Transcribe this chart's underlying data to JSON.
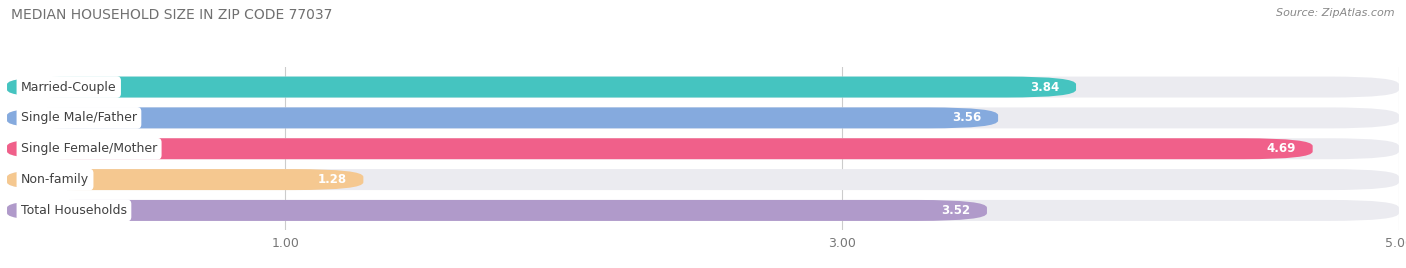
{
  "title": "MEDIAN HOUSEHOLD SIZE IN ZIP CODE 77037",
  "source": "Source: ZipAtlas.com",
  "categories": [
    "Married-Couple",
    "Single Male/Father",
    "Single Female/Mother",
    "Non-family",
    "Total Households"
  ],
  "values": [
    3.84,
    3.56,
    4.69,
    1.28,
    3.52
  ],
  "bar_colors": [
    "#45c4c0",
    "#85aade",
    "#f0608a",
    "#f5c890",
    "#b09aca"
  ],
  "background_color": "#ffffff",
  "bar_bg_color": "#ebebf0",
  "xlim": [
    0,
    5.0
  ],
  "xticks": [
    1.0,
    3.0,
    5.0
  ],
  "title_fontsize": 10,
  "label_fontsize": 9,
  "value_fontsize": 8.5,
  "source_fontsize": 8
}
